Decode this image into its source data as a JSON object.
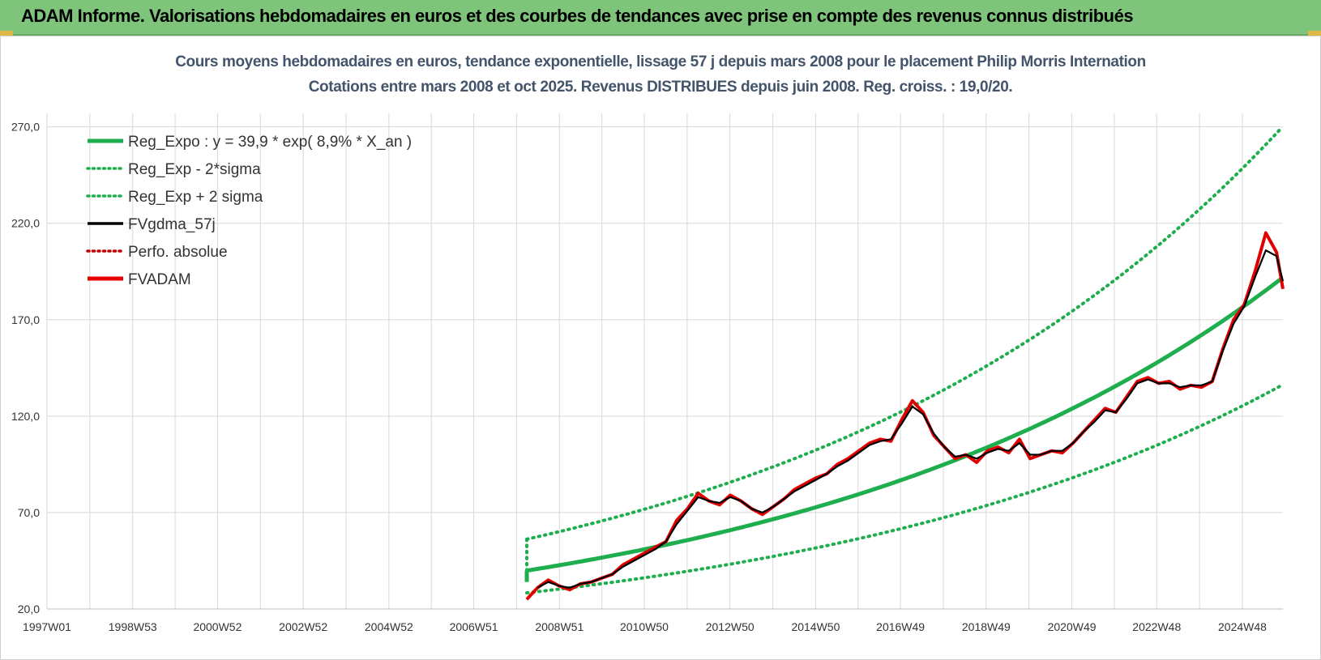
{
  "banner": {
    "title": "ADAM Informe. Valorisations hebdomadaires en euros et des courbes de tendances avec prise en compte des revenus connus distribués"
  },
  "colors": {
    "banner_bg": "#7ec47a",
    "reg_green": "#1fae4e",
    "fvadam_red": "#e60000",
    "perfo_red": "#c00000",
    "fvgdma_black": "#000000",
    "grid": "#d9d9d9"
  },
  "chart_data": {
    "type": "line",
    "title": "Cours moyens hebdomadaires en euros, tendance exponentielle, lissage 57 j depuis mars 2008 pour le placement Philip Morris Internation",
    "subtitle": "Cotations entre mars 2008 et oct 2025.  Revenus DISTRIBUES depuis juin 2008. Reg. croiss. : 19,0/20.",
    "x_ticks": [
      "1997W01",
      "1998W53",
      "2000W52",
      "2002W52",
      "2004W52",
      "2006W51",
      "2008W51",
      "2010W50",
      "2012W50",
      "2014W50",
      "2016W49",
      "2018W49",
      "2020W49",
      "2022W48",
      "2024W48"
    ],
    "x_range": [
      1997.0,
      2025.85
    ],
    "y_ticks": [
      "20,0",
      "70,0",
      "120,0",
      "170,0",
      "220,0",
      "270,0"
    ],
    "ylim": [
      20,
      277
    ],
    "grid": true,
    "legend_position": "top-left",
    "legend": [
      {
        "key": "reg",
        "label": "Reg_Expo : y = 39,9 * exp( 8,9% *  X_an )",
        "style": "solid-thick",
        "color": "#1fae4e"
      },
      {
        "key": "low",
        "label": "Reg_Exp - 2*sigma",
        "style": "dotted",
        "color": "#1fae4e"
      },
      {
        "key": "high",
        "label": "Reg_Exp + 2 sigma",
        "style": "dotted",
        "color": "#1fae4e"
      },
      {
        "key": "gdma",
        "label": "FVgdma_57j",
        "style": "solid",
        "color": "#000000"
      },
      {
        "key": "perfo",
        "label": "Perfo. absolue",
        "style": "dotted",
        "color": "#c00000"
      },
      {
        "key": "adam",
        "label": "FVADAM",
        "style": "solid-thick",
        "color": "#e60000"
      }
    ],
    "regression": {
      "a": 39.9,
      "rate": 0.089,
      "start_year": 2008.2,
      "end_year": 2025.8,
      "sigma_factor": 1.408
    },
    "series": [
      {
        "name": "FVADAM",
        "x": [
          2008.2,
          2008.45,
          2008.7,
          2008.95,
          2009.2,
          2009.45,
          2009.7,
          2009.95,
          2010.2,
          2010.45,
          2010.7,
          2010.95,
          2011.2,
          2011.45,
          2011.7,
          2011.95,
          2012.2,
          2012.45,
          2012.7,
          2012.95,
          2013.2,
          2013.45,
          2013.7,
          2013.95,
          2014.2,
          2014.45,
          2014.7,
          2014.95,
          2015.2,
          2015.45,
          2015.7,
          2015.95,
          2016.2,
          2016.45,
          2016.7,
          2016.95,
          2017.2,
          2017.45,
          2017.7,
          2017.95,
          2018.2,
          2018.45,
          2018.7,
          2018.95,
          2019.2,
          2019.45,
          2019.7,
          2019.95,
          2020.2,
          2020.45,
          2020.7,
          2020.95,
          2021.2,
          2021.45,
          2021.7,
          2021.95,
          2022.2,
          2022.45,
          2022.7,
          2022.95,
          2023.2,
          2023.45,
          2023.7,
          2023.95,
          2024.2,
          2024.45,
          2024.7,
          2024.95,
          2025.2,
          2025.45,
          2025.7,
          2025.85
        ],
        "y": [
          25,
          31,
          35,
          32,
          30,
          33,
          34,
          36,
          38,
          43,
          46,
          49,
          52,
          55,
          66,
          72,
          80,
          76,
          74,
          79,
          76,
          72,
          69,
          73,
          77,
          82,
          85,
          88,
          90,
          95,
          98,
          102,
          106,
          108,
          107,
          118,
          128,
          122,
          110,
          104,
          98,
          100,
          96,
          102,
          104,
          101,
          108,
          98,
          100,
          102,
          101,
          106,
          112,
          118,
          124,
          122,
          130,
          138,
          140,
          137,
          138,
          134,
          136,
          135,
          138,
          155,
          170,
          178,
          195,
          215,
          205,
          186
        ]
      },
      {
        "name": "FVgdma_57j",
        "x": [
          2008.45,
          2008.7,
          2008.95,
          2009.2,
          2009.45,
          2009.7,
          2009.95,
          2010.2,
          2010.45,
          2010.7,
          2010.95,
          2011.2,
          2011.45,
          2011.7,
          2011.95,
          2012.2,
          2012.45,
          2012.7,
          2012.95,
          2013.2,
          2013.45,
          2013.7,
          2013.95,
          2014.2,
          2014.45,
          2014.7,
          2014.95,
          2015.2,
          2015.45,
          2015.7,
          2015.95,
          2016.2,
          2016.45,
          2016.7,
          2016.95,
          2017.2,
          2017.45,
          2017.7,
          2017.95,
          2018.2,
          2018.45,
          2018.7,
          2018.95,
          2019.2,
          2019.45,
          2019.7,
          2019.95,
          2020.2,
          2020.45,
          2020.7,
          2020.95,
          2021.2,
          2021.45,
          2021.7,
          2021.95,
          2022.2,
          2022.45,
          2022.7,
          2022.95,
          2023.2,
          2023.45,
          2023.7,
          2023.95,
          2024.2,
          2024.45,
          2024.7,
          2024.95,
          2025.2,
          2025.45,
          2025.7,
          2025.85
        ],
        "y": [
          31,
          34,
          32,
          31,
          33,
          34,
          36,
          38,
          42,
          45,
          48,
          51,
          55,
          64,
          71,
          78,
          76,
          75,
          78,
          76,
          72,
          70,
          73,
          77,
          81,
          84,
          87,
          90,
          94,
          97,
          101,
          105,
          107,
          108,
          116,
          125,
          121,
          111,
          104,
          99,
          100,
          98,
          101,
          103,
          102,
          106,
          100,
          100,
          102,
          102,
          106,
          112,
          117,
          123,
          122,
          129,
          137,
          139,
          137,
          137,
          135,
          136,
          136,
          138,
          154,
          168,
          177,
          192,
          206,
          203,
          190
        ]
      }
    ]
  }
}
